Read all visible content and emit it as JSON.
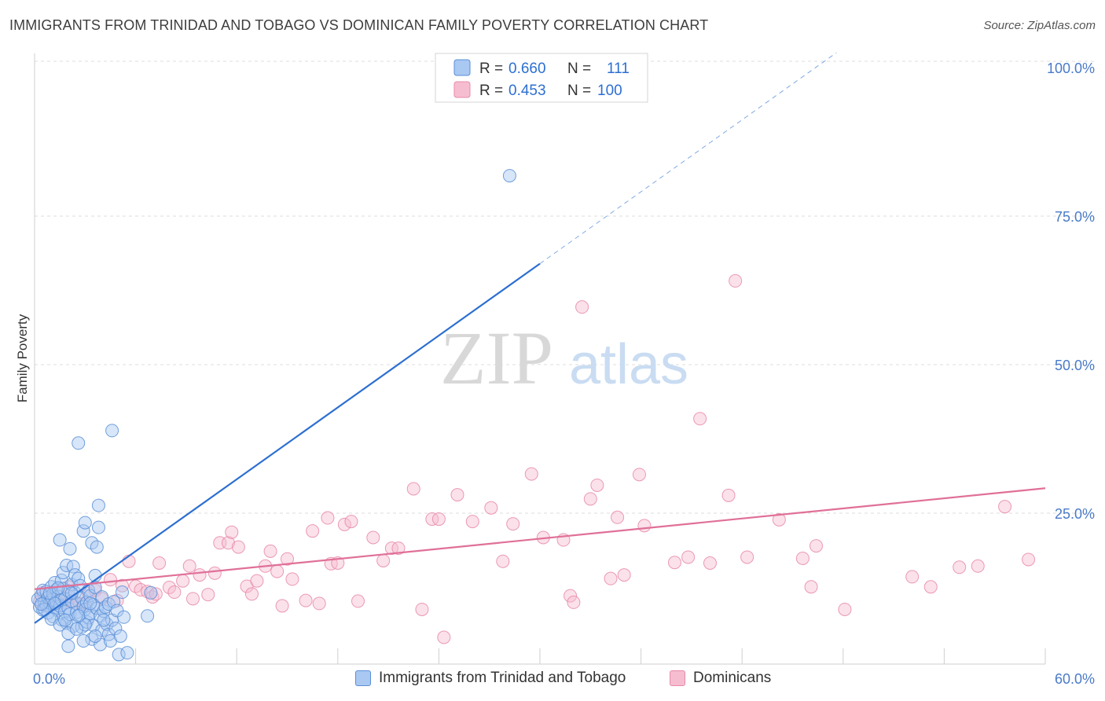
{
  "title": "IMMIGRANTS FROM TRINIDAD AND TOBAGO VS DOMINICAN FAMILY POVERTY CORRELATION CHART",
  "source": "Source: ZipAtlas.com",
  "colors": {
    "blue_fill": "#a9c8f2",
    "blue_stroke": "#5b8fd6",
    "blue_line": "#2d6fd1",
    "pink_fill": "#f6bdd0",
    "pink_stroke": "#e88aa8",
    "pink_line": "#e07098",
    "axis_text": "#4a7ac8",
    "grid": "#dddddd"
  },
  "chart_data": {
    "type": "scatter",
    "ylabel": "Family Poverty",
    "xlim": [
      0,
      60
    ],
    "ylim": [
      0,
      100
    ],
    "x_tick_labels": [
      {
        "value": 0,
        "label": "0.0%"
      },
      {
        "value": 60,
        "label": "60.0%"
      }
    ],
    "y_tick_labels": [
      {
        "value": 25,
        "label": "25.0%"
      },
      {
        "value": 50,
        "label": "50.0%"
      },
      {
        "value": 75,
        "label": "75.0%"
      },
      {
        "value": 100,
        "label": "100.0%"
      }
    ],
    "grid": "horizontal dashed",
    "watermark": {
      "zip": "ZIP",
      "atlas": "atlas"
    },
    "legend_stats": [
      {
        "r_label": "R =",
        "r_value": "0.660",
        "n_label": "N =",
        "n_value": "111"
      },
      {
        "r_label": "R =",
        "r_value": "0.453",
        "n_label": "N =",
        "n_value": "100"
      }
    ],
    "series": [
      {
        "name": "Immigrants from Trinidad and Tobago",
        "trend": {
          "x0": 0,
          "y0": 6.5,
          "x1": 30,
          "y1": 67,
          "x_dashed_end": 46,
          "y_dashed_end": 100
        },
        "points": [
          [
            0.2,
            10.5
          ],
          [
            0.3,
            9.2
          ],
          [
            0.4,
            11.2
          ],
          [
            0.5,
            8.7
          ],
          [
            0.5,
            12.0
          ],
          [
            0.6,
            10.0
          ],
          [
            0.7,
            9.5
          ],
          [
            0.7,
            11.8
          ],
          [
            0.8,
            10.8
          ],
          [
            0.8,
            8.2
          ],
          [
            0.9,
            9.9
          ],
          [
            1.0,
            12.6
          ],
          [
            1.0,
            10.3
          ],
          [
            1.1,
            11.4
          ],
          [
            1.1,
            7.6
          ],
          [
            1.2,
            9.1
          ],
          [
            1.2,
            13.3
          ],
          [
            1.3,
            10.1
          ],
          [
            1.3,
            12.1
          ],
          [
            1.4,
            8.6
          ],
          [
            1.4,
            11.0
          ],
          [
            1.5,
            9.4
          ],
          [
            1.5,
            20.5
          ],
          [
            1.6,
            10.4
          ],
          [
            1.6,
            13.7
          ],
          [
            1.6,
            7.1
          ],
          [
            1.7,
            15.0
          ],
          [
            1.7,
            12.3
          ],
          [
            1.8,
            8.4
          ],
          [
            1.8,
            10.6
          ],
          [
            1.9,
            16.2
          ],
          [
            1.9,
            6.5
          ],
          [
            2.0,
            11.9
          ],
          [
            2.0,
            9.0
          ],
          [
            2.1,
            19.0
          ],
          [
            2.1,
            8.0
          ],
          [
            2.2,
            13.0
          ],
          [
            2.2,
            10.2
          ],
          [
            2.3,
            16.0
          ],
          [
            2.3,
            6.0
          ],
          [
            2.4,
            14.6
          ],
          [
            2.4,
            11.6
          ],
          [
            2.5,
            9.8
          ],
          [
            2.5,
            8.3
          ],
          [
            2.6,
            36.8
          ],
          [
            2.6,
            14.0
          ],
          [
            2.7,
            7.9
          ],
          [
            2.7,
            12.8
          ],
          [
            2.8,
            10.7
          ],
          [
            2.8,
            5.8
          ],
          [
            2.9,
            22.0
          ],
          [
            2.9,
            9.3
          ],
          [
            3.0,
            23.4
          ],
          [
            3.0,
            8.8
          ],
          [
            3.1,
            10.0
          ],
          [
            3.1,
            6.7
          ],
          [
            3.2,
            12.0
          ],
          [
            3.2,
            7.4
          ],
          [
            3.3,
            8.1
          ],
          [
            3.3,
            11.1
          ],
          [
            3.4,
            20.0
          ],
          [
            3.4,
            3.8
          ],
          [
            3.5,
            9.6
          ],
          [
            3.5,
            6.1
          ],
          [
            3.6,
            14.5
          ],
          [
            3.6,
            12.5
          ],
          [
            3.7,
            19.3
          ],
          [
            3.7,
            9.0
          ],
          [
            3.8,
            26.3
          ],
          [
            3.8,
            22.6
          ],
          [
            3.9,
            7.7
          ],
          [
            3.9,
            2.9
          ],
          [
            4.0,
            10.9
          ],
          [
            4.0,
            5.3
          ],
          [
            4.1,
            8.5
          ],
          [
            4.2,
            9.2
          ],
          [
            4.3,
            6.3
          ],
          [
            4.4,
            4.6
          ],
          [
            4.4,
            9.7
          ],
          [
            4.5,
            3.5
          ],
          [
            4.6,
            38.9
          ],
          [
            4.6,
            7.0
          ],
          [
            4.7,
            10.1
          ],
          [
            4.8,
            5.6
          ],
          [
            4.9,
            8.6
          ],
          [
            5.0,
            1.2
          ],
          [
            5.1,
            4.3
          ],
          [
            5.2,
            11.7
          ],
          [
            5.3,
            7.5
          ],
          [
            2.0,
            2.6
          ],
          [
            1.0,
            7.2
          ],
          [
            1.5,
            6.2
          ],
          [
            0.9,
            11.5
          ],
          [
            2.2,
            11.5
          ],
          [
            3.0,
            6.2
          ],
          [
            6.7,
            7.7
          ],
          [
            6.9,
            11.6
          ],
          [
            28.2,
            81.8
          ],
          [
            2.9,
            3.5
          ],
          [
            2.0,
            4.8
          ],
          [
            1.2,
            9.8
          ],
          [
            0.6,
            8.8
          ],
          [
            1.8,
            7.0
          ],
          [
            2.6,
            7.7
          ],
          [
            3.3,
            9.8
          ],
          [
            4.1,
            7.0
          ],
          [
            0.4,
            9.7
          ],
          [
            1.4,
            12.4
          ],
          [
            2.5,
            5.5
          ],
          [
            3.6,
            4.3
          ],
          [
            5.5,
            1.5
          ]
        ]
      },
      {
        "name": "Dominicans",
        "trend": {
          "x0": 0,
          "y0": 12.2,
          "x1": 60,
          "y1": 29.2
        },
        "points": [
          [
            0.3,
            10.1
          ],
          [
            0.5,
            11.6
          ],
          [
            0.8,
            9.3
          ],
          [
            1.0,
            10.8
          ],
          [
            1.3,
            11.9
          ],
          [
            1.6,
            9.6
          ],
          [
            2.0,
            12.6
          ],
          [
            2.3,
            10.2
          ],
          [
            2.7,
            9.8
          ],
          [
            3.2,
            11.5
          ],
          [
            3.6,
            12.0
          ],
          [
            4.0,
            10.6
          ],
          [
            4.5,
            13.8
          ],
          [
            4.9,
            10.3
          ],
          [
            5.2,
            12.8
          ],
          [
            5.6,
            16.9
          ],
          [
            6.0,
            12.7
          ],
          [
            6.3,
            12.1
          ],
          [
            6.7,
            11.8
          ],
          [
            7.0,
            10.9
          ],
          [
            7.2,
            11.4
          ],
          [
            7.4,
            16.6
          ],
          [
            8.0,
            12.5
          ],
          [
            8.3,
            11.7
          ],
          [
            8.8,
            13.6
          ],
          [
            9.2,
            16.1
          ],
          [
            9.4,
            10.6
          ],
          [
            9.8,
            14.6
          ],
          [
            10.3,
            11.3
          ],
          [
            10.7,
            14.9
          ],
          [
            11.0,
            20.0
          ],
          [
            11.5,
            20.0
          ],
          [
            11.7,
            21.8
          ],
          [
            12.1,
            19.3
          ],
          [
            12.6,
            12.7
          ],
          [
            12.9,
            11.4
          ],
          [
            13.2,
            13.6
          ],
          [
            13.7,
            16.1
          ],
          [
            14.0,
            18.6
          ],
          [
            14.4,
            15.2
          ],
          [
            14.7,
            9.4
          ],
          [
            15.0,
            17.3
          ],
          [
            15.3,
            13.9
          ],
          [
            16.1,
            10.3
          ],
          [
            16.5,
            22.0
          ],
          [
            16.9,
            9.8
          ],
          [
            17.4,
            24.2
          ],
          [
            17.6,
            16.5
          ],
          [
            18.0,
            16.6
          ],
          [
            18.4,
            23.1
          ],
          [
            18.8,
            23.6
          ],
          [
            19.2,
            10.2
          ],
          [
            20.1,
            20.9
          ],
          [
            20.7,
            17.0
          ],
          [
            21.2,
            19.1
          ],
          [
            21.6,
            19.1
          ],
          [
            22.5,
            29.1
          ],
          [
            23.0,
            8.8
          ],
          [
            23.6,
            24.0
          ],
          [
            24.3,
            4.1
          ],
          [
            25.1,
            28.1
          ],
          [
            26.0,
            23.6
          ],
          [
            27.1,
            25.9
          ],
          [
            27.8,
            16.9
          ],
          [
            28.4,
            23.2
          ],
          [
            29.5,
            31.6
          ],
          [
            30.2,
            20.9
          ],
          [
            31.4,
            20.5
          ],
          [
            31.8,
            11.1
          ],
          [
            32.0,
            10.0
          ],
          [
            32.5,
            59.7
          ],
          [
            33.0,
            27.4
          ],
          [
            33.4,
            29.7
          ],
          [
            34.2,
            14.0
          ],
          [
            34.6,
            24.3
          ],
          [
            35.0,
            14.6
          ],
          [
            35.9,
            31.5
          ],
          [
            36.2,
            22.9
          ],
          [
            38.0,
            16.7
          ],
          [
            38.8,
            17.6
          ],
          [
            39.5,
            40.9
          ],
          [
            40.1,
            16.6
          ],
          [
            41.2,
            28.0
          ],
          [
            41.6,
            64.1
          ],
          [
            42.3,
            17.6
          ],
          [
            44.2,
            23.9
          ],
          [
            45.6,
            17.4
          ],
          [
            46.1,
            12.6
          ],
          [
            46.4,
            19.5
          ],
          [
            48.1,
            8.8
          ],
          [
            52.1,
            14.3
          ],
          [
            53.2,
            12.6
          ],
          [
            54.9,
            15.9
          ],
          [
            56.0,
            16.1
          ],
          [
            57.6,
            26.1
          ],
          [
            59.0,
            17.2
          ],
          [
            0.6,
            9.6
          ],
          [
            1.9,
            10.4
          ],
          [
            3.0,
            9.7
          ],
          [
            24.0,
            24.0
          ]
        ]
      }
    ]
  }
}
